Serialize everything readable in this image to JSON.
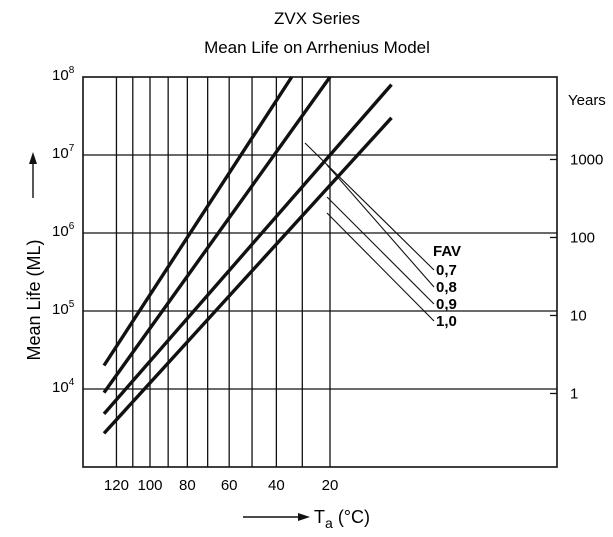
{
  "chart_data": {
    "type": "line",
    "title": "ZVX Series",
    "subtitle": "Mean Life on Arrhenius Model",
    "ylabel": "Mean Life (ML)",
    "y2label": "Years",
    "xlabel_main": "T",
    "xlabel_sub": "a",
    "xlabel_unit": "(°C)",
    "y_scale": "log",
    "ylim": [
      1000,
      100000000
    ],
    "xlim": [
      128,
      0
    ],
    "x_axis": "Ambient temperature in °C, plotted on a reciprocal (Arrhenius) scale, decreasing to the right",
    "x_ticks": [
      {
        "value": 120,
        "label": "120"
      },
      {
        "value": 100,
        "label": "100"
      },
      {
        "value": 80,
        "label": "80"
      },
      {
        "value": 60,
        "label": "60"
      },
      {
        "value": 40,
        "label": "40"
      },
      {
        "value": 20,
        "label": "20"
      }
    ],
    "x_gridlines": [
      120,
      110,
      100,
      90,
      80,
      70,
      60,
      50,
      40,
      30,
      20
    ],
    "y_ticks": [
      {
        "value": 10000,
        "base": "10",
        "exp": "4"
      },
      {
        "value": 100000,
        "base": "10",
        "exp": "5"
      },
      {
        "value": 1000000,
        "base": "10",
        "exp": "6"
      },
      {
        "value": 10000000,
        "base": "10",
        "exp": "7"
      },
      {
        "value": 100000000,
        "base": "10",
        "exp": "8"
      }
    ],
    "y2_ticks": [
      {
        "value": 8760,
        "label": "1"
      },
      {
        "value": 87600,
        "label": "10"
      },
      {
        "value": 876000,
        "label": "100"
      },
      {
        "value": 8760000,
        "label": "1000"
      }
    ],
    "grid": true,
    "legend_title": "FAV",
    "series": [
      {
        "name": "0,7",
        "x": [
          128,
          34
        ],
        "y": [
          20000,
          100000000
        ]
      },
      {
        "name": "0,8",
        "x": [
          128,
          20
        ],
        "y": [
          9000,
          100000000
        ]
      },
      {
        "name": "0,9",
        "x": [
          128,
          0
        ],
        "y": [
          4800,
          80000000
        ]
      },
      {
        "name": "1,0",
        "x": [
          128,
          0
        ],
        "y": [
          2700,
          30000000
        ]
      }
    ]
  }
}
